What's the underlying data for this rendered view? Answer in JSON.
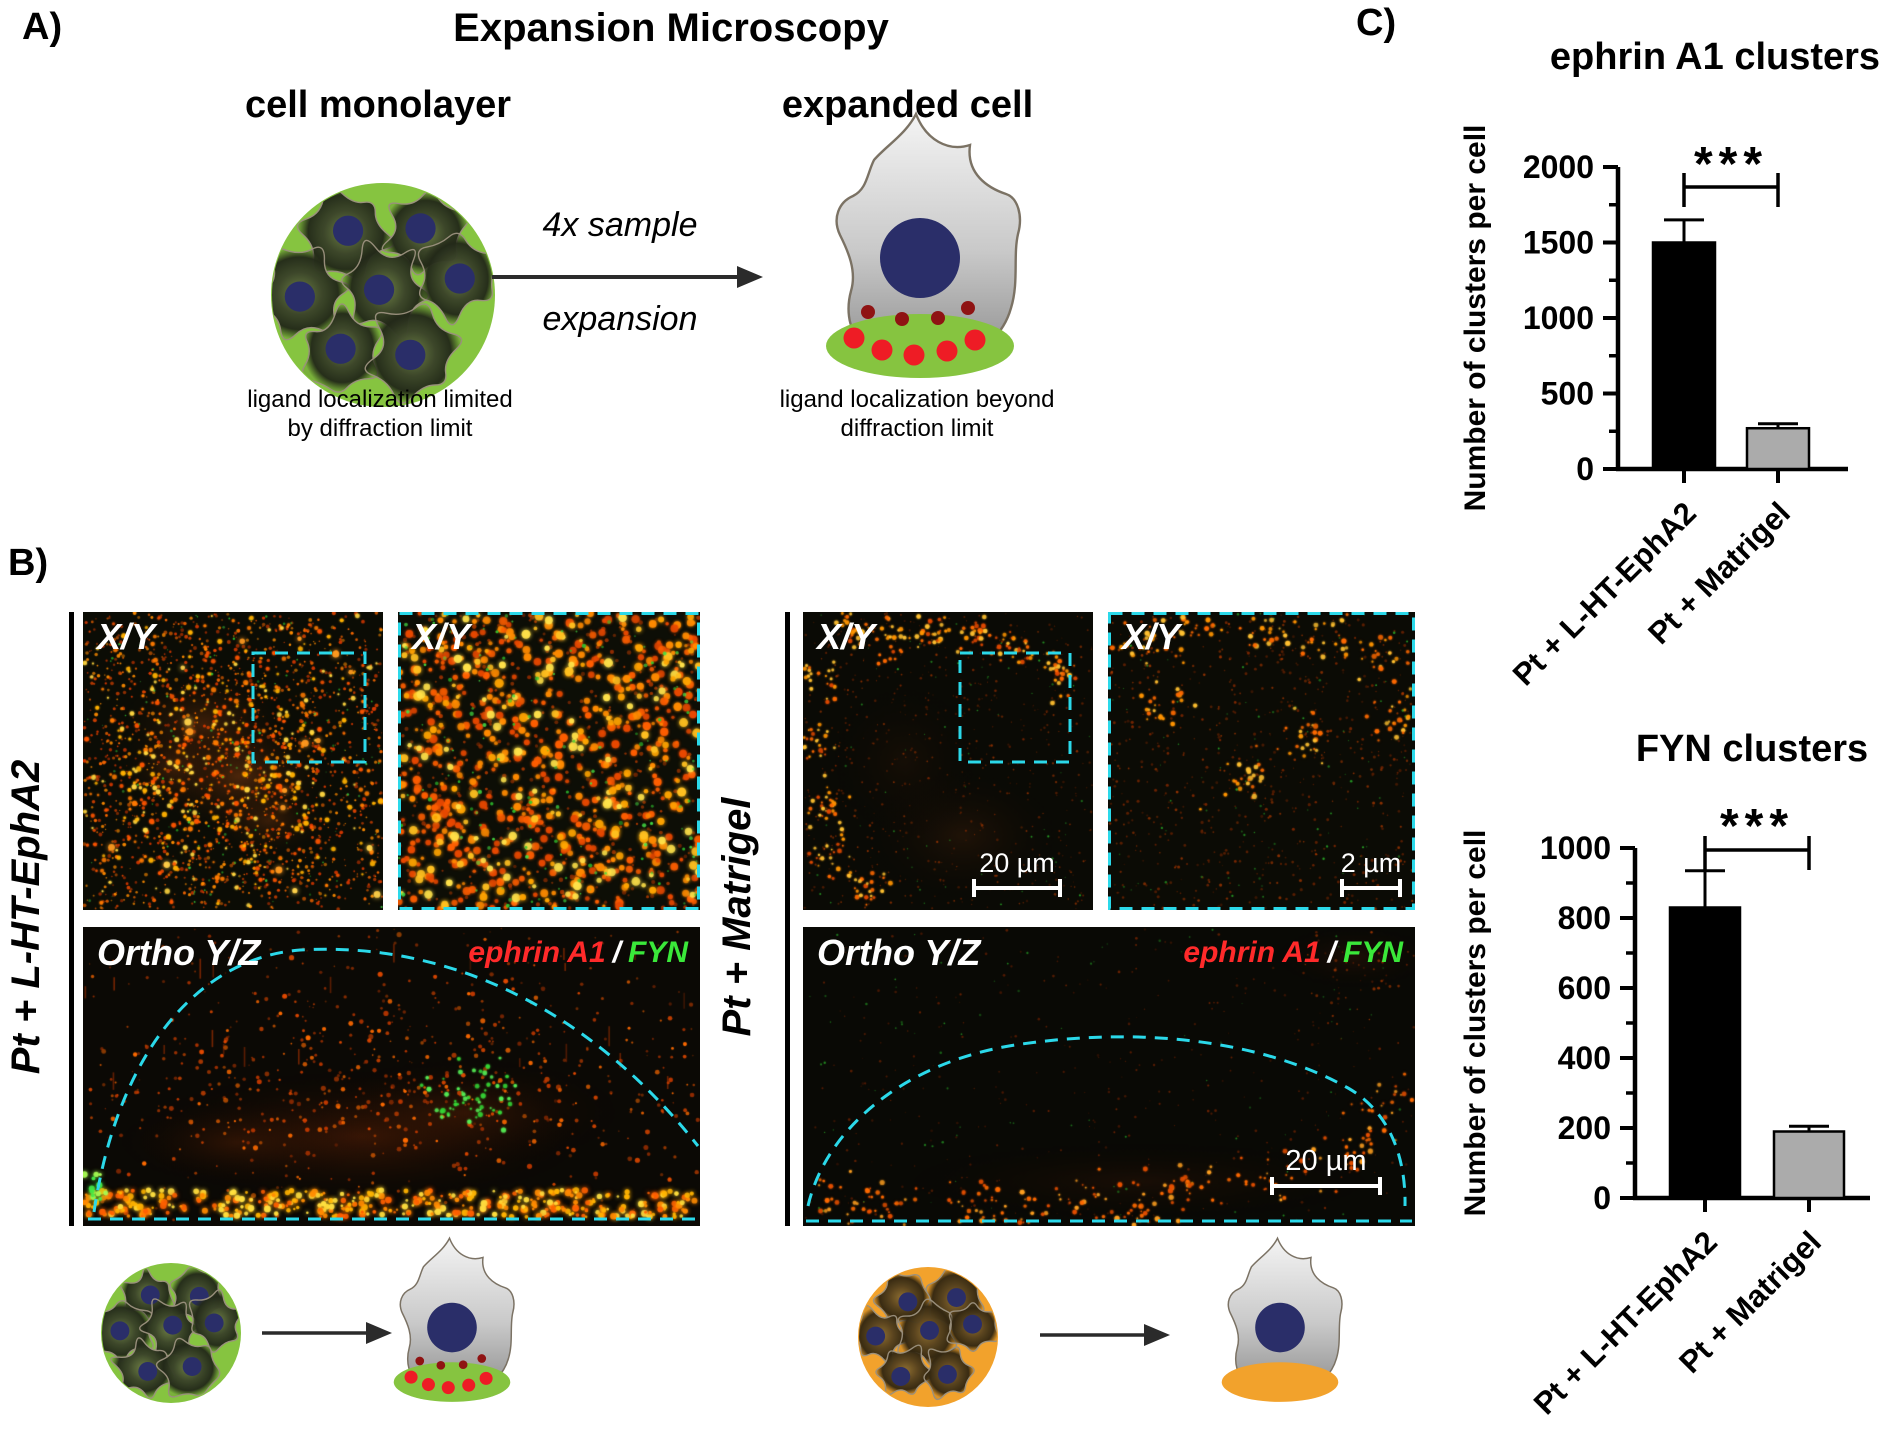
{
  "panel_a": {
    "label": "A)",
    "title": "Expansion Microscopy",
    "monolayer_heading": "cell monolayer",
    "expanded_heading": "expanded cell",
    "arrow_label_line1": "4x sample",
    "arrow_label_line2": "expansion",
    "monolayer_caption_line1": "ligand localization limited",
    "monolayer_caption_line2": "by diffraction limit",
    "expanded_caption_line1": "ligand localization beyond",
    "expanded_caption_line2": "diffraction limit"
  },
  "panel_b": {
    "label": "B)",
    "groups": [
      {
        "row_label": "Pt + L-HT-EphA2",
        "xy_label": "X/Y",
        "xy_zoom_label": "X/Y",
        "ortho_label": "Ortho Y/Z",
        "overlay_red": "ephrin A1",
        "overlay_sep": "/",
        "overlay_green": "FYN"
      },
      {
        "row_label": "Pt + Matrigel",
        "xy_label": "X/Y",
        "xy_zoom_label": "X/Y",
        "ortho_label": "Ortho Y/Z",
        "overlay_red": "ephrin A1",
        "overlay_sep": "/",
        "overlay_green": "FYN",
        "xy_scalebar": "20 µm",
        "xy_zoom_scalebar": "2 µm",
        "ortho_scalebar": "20 µm"
      }
    ]
  },
  "panel_c": {
    "label": "C)"
  },
  "chart_data": [
    {
      "type": "bar",
      "title": "ephrin A1 clusters",
      "ylabel": "Number of clusters per cell",
      "xlabel": "",
      "categories": [
        "Pt + L-HT-EphA2",
        "Pt + Matrigel"
      ],
      "values": [
        1500,
        270
      ],
      "errors": [
        150,
        30
      ],
      "ylim": [
        0,
        2000
      ],
      "yticks": [
        0,
        500,
        1000,
        1500,
        2000
      ],
      "significance": "***",
      "grid": false,
      "legend": false,
      "bar_colors": [
        "#000000",
        "#ABABAB"
      ]
    },
    {
      "type": "bar",
      "title": "FYN clusters",
      "ylabel": "Number of clusters per cell",
      "xlabel": "",
      "categories": [
        "Pt + L-HT-EphA2",
        "Pt + Matrigel"
      ],
      "values": [
        830,
        190
      ],
      "errors": [
        105,
        15
      ],
      "ylim": [
        0,
        1000
      ],
      "yticks": [
        0,
        200,
        400,
        600,
        800,
        1000
      ],
      "significance": "***",
      "grid": false,
      "legend": false,
      "bar_colors": [
        "#000000",
        "#ABABAB"
      ]
    }
  ],
  "colors": {
    "monolayer_green": "#86C440",
    "matrigel_orange": "#F2A22C",
    "nucleus_navy": "#2A2E69",
    "ligand_red_bright": "#EE1C25",
    "ligand_red_dark": "#8F1313",
    "outline_cyan": "#2BD9EA",
    "overlay_red": "#FF2A2A",
    "overlay_green": "#3AE83A",
    "bar_black": "#000000",
    "bar_gray": "#ABABAB"
  }
}
